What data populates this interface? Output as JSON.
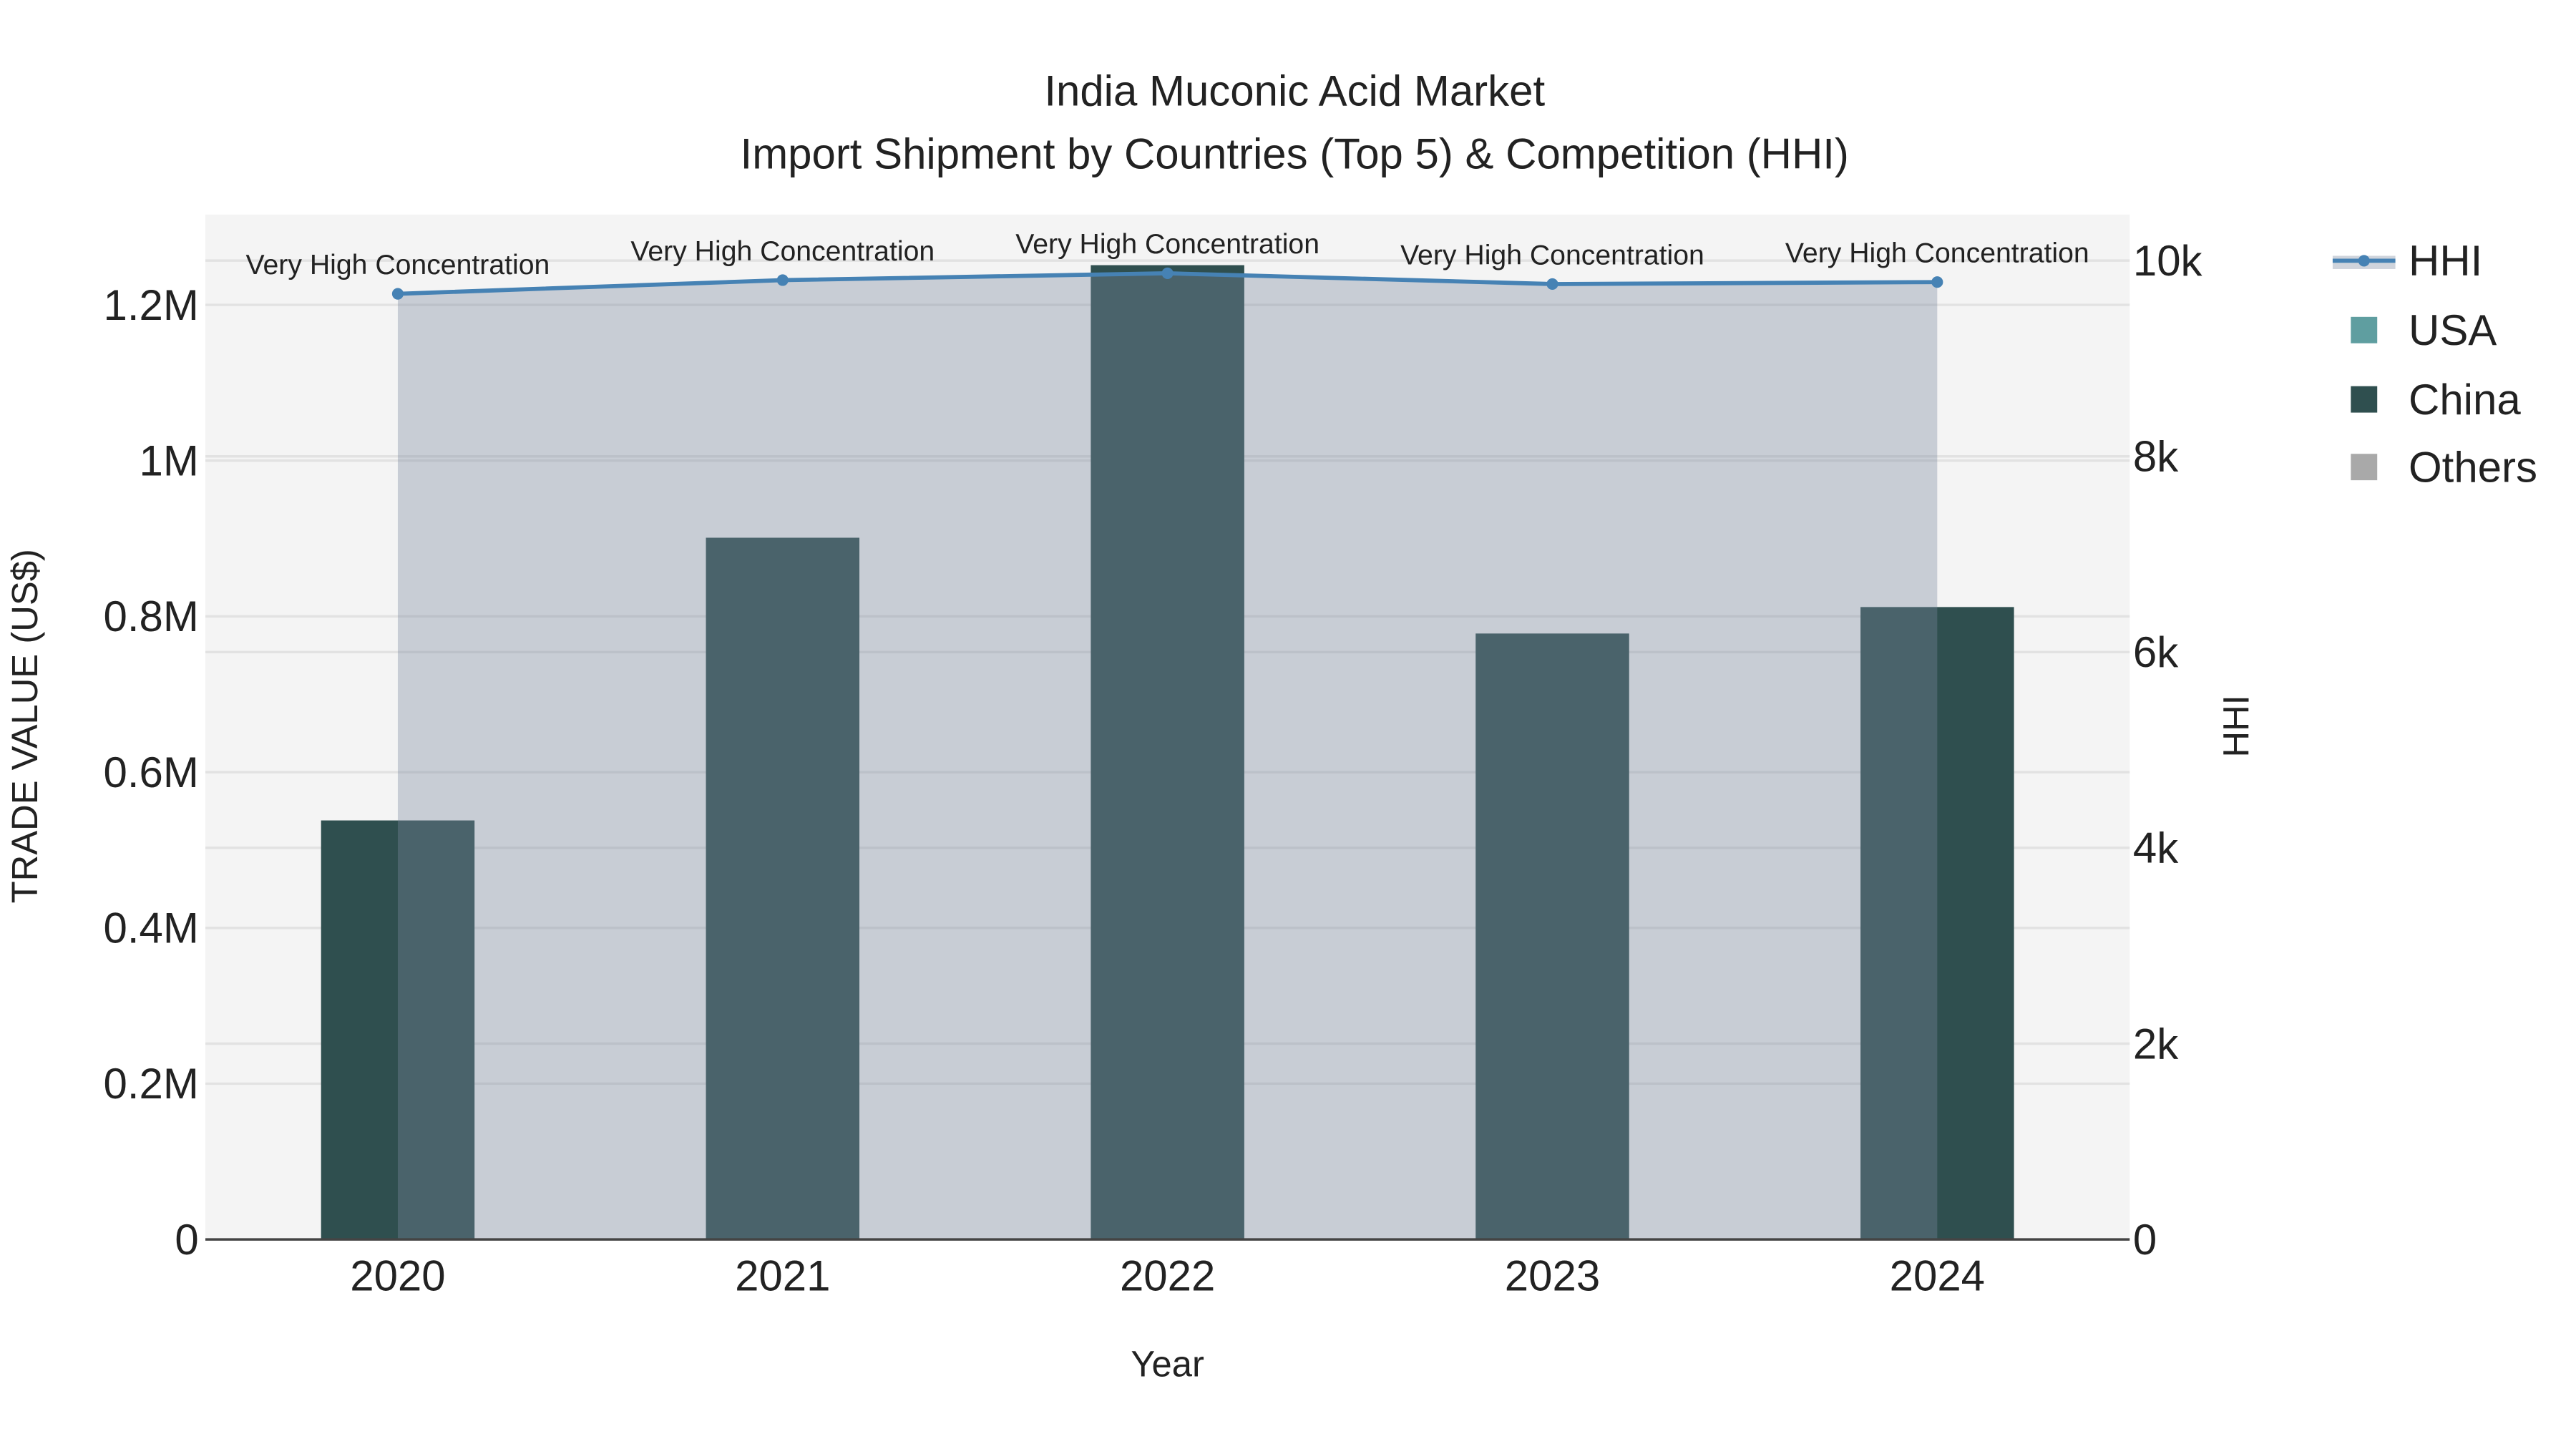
{
  "chart_data": {
    "type": "bar",
    "title": "India Muconic Acid Market",
    "subtitle": "Import Shipment by Countries (Top 5) & Competition (HHI)",
    "xlabel": "Year",
    "ylabel": "TRADE VALUE (US$)",
    "y2label": "HHI",
    "categories": [
      "2020",
      "2021",
      "2022",
      "2023",
      "2024"
    ],
    "series": [
      {
        "name": "USA",
        "type": "bar",
        "color": "#5F9EA0",
        "values": [
          0,
          0,
          0,
          0,
          0
        ]
      },
      {
        "name": "China",
        "type": "bar",
        "color": "#2F4F4F",
        "values": [
          538000,
          901000,
          1251000,
          778000,
          812000
        ]
      },
      {
        "name": "Others",
        "type": "bar",
        "color": "#A9A9A9",
        "values": [
          0,
          0,
          0,
          0,
          0
        ]
      },
      {
        "name": "HHI",
        "type": "line",
        "axis": "y2",
        "color": "#4682B4",
        "fill": "tozeroy",
        "values": [
          9660,
          9800,
          9870,
          9760,
          9780
        ],
        "annotations": [
          "Very High Concentration",
          "Very High Concentration",
          "Very High Concentration",
          "Very High Concentration",
          "Very High Concentration"
        ]
      }
    ],
    "ylim": [
      0,
      1316000
    ],
    "y2lim": [
      0,
      10470
    ],
    "yticks": [
      {
        "v": 0,
        "label": "0"
      },
      {
        "v": 200000,
        "label": "0.2M"
      },
      {
        "v": 400000,
        "label": "0.4M"
      },
      {
        "v": 600000,
        "label": "0.6M"
      },
      {
        "v": 800000,
        "label": "0.8M"
      },
      {
        "v": 1000000,
        "label": "1M"
      },
      {
        "v": 1200000,
        "label": "1.2M"
      }
    ],
    "y2ticks": [
      {
        "v": 0,
        "label": "0"
      },
      {
        "v": 2000,
        "label": "2k"
      },
      {
        "v": 4000,
        "label": "4k"
      },
      {
        "v": 6000,
        "label": "6k"
      },
      {
        "v": 8000,
        "label": "8k"
      },
      {
        "v": 10000,
        "label": "10k"
      }
    ],
    "legend": [
      "HHI",
      "USA",
      "China",
      "Others"
    ],
    "legend_position": "right",
    "grid": true
  }
}
